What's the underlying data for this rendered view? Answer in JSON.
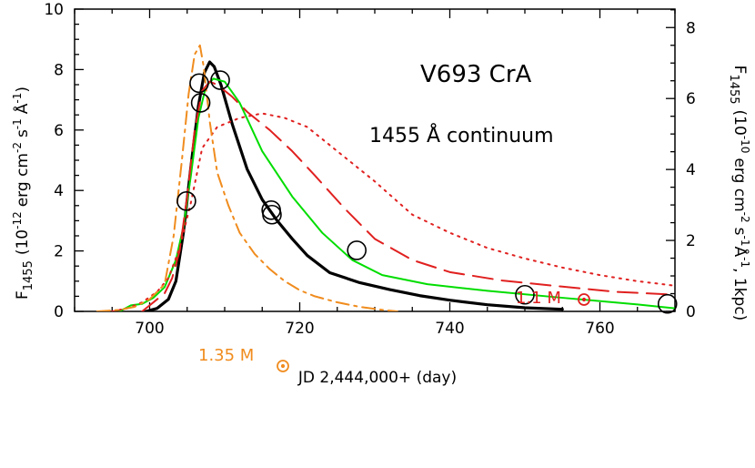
{
  "chart_data": {
    "type": "line",
    "title": "V693 CrA",
    "subtitle": "1455 Å continuum",
    "xlabel": "JD 2,444,000+ (day)",
    "ylabel_left": {
      "main": "F",
      "sub": "1455",
      "rest": "(10",
      "exp": "-12",
      "units": "erg cm",
      "e2": "-2",
      "s": "s",
      "e1": "-1",
      "ang": "Å",
      "e3": "-1",
      "close": ")"
    },
    "ylabel_right": {
      "main": "F",
      "sub": "1455",
      "rest": "(10",
      "exp": "-10",
      "units": "erg cm",
      "e2": "-2",
      "s": "s",
      "e1": "-1",
      "ang": "Å",
      "e3": "-1",
      "tail": ", 1kpc)"
    },
    "xlim": [
      690,
      770
    ],
    "ylim_left": [
      0,
      10
    ],
    "ylim_right": [
      0,
      8.52
    ],
    "x_ticks": [
      700,
      720,
      740,
      760
    ],
    "y_ticks_left": [
      0,
      2,
      4,
      6,
      8,
      10
    ],
    "y_ticks_right": [
      0,
      2,
      4,
      6,
      8
    ],
    "annotations": {
      "m1": {
        "text": "1.1 M",
        "color": "#e0201f"
      },
      "m2": {
        "text": "1.35 M",
        "color": "#f08c1e"
      }
    },
    "observations": {
      "x": [
        704.9,
        706.6,
        706.8,
        709.4,
        716.2,
        716.3,
        727.6,
        750.0,
        769.0
      ],
      "y": [
        3.65,
        7.55,
        6.9,
        7.65,
        3.35,
        3.2,
        2.02,
        0.55,
        0.25
      ]
    },
    "series": [
      {
        "color": "#000000",
        "style": "solid",
        "width": 3.2,
        "x": [
          699.5,
          701,
          702.5,
          703.5,
          704.5,
          705.5,
          706.5,
          707.3,
          708,
          708.6,
          709.5,
          711,
          713,
          715,
          717,
          719,
          721,
          724,
          728,
          732,
          736,
          740,
          745,
          750,
          755
        ],
        "y": [
          0,
          0.1,
          0.4,
          1.0,
          2.6,
          4.8,
          6.8,
          7.9,
          8.25,
          8.1,
          7.5,
          6.2,
          4.7,
          3.7,
          3.0,
          2.4,
          1.85,
          1.28,
          0.95,
          0.72,
          0.52,
          0.37,
          0.22,
          0.12,
          0.07
        ]
      },
      {
        "color": "#00dd00",
        "style": "solid",
        "width": 2,
        "x": [
          696,
          697.5,
          699,
          700.5,
          702,
          703.5,
          704.5,
          705.5,
          706.5,
          707.5,
          708.5,
          710,
          712,
          715,
          719,
          723,
          727,
          731,
          737,
          745,
          755,
          765,
          770
        ],
        "y": [
          0,
          0.2,
          0.25,
          0.45,
          0.8,
          1.7,
          2.8,
          4.5,
          6.4,
          7.45,
          7.7,
          7.6,
          6.9,
          5.3,
          3.8,
          2.6,
          1.7,
          1.2,
          0.9,
          0.68,
          0.45,
          0.23,
          0.1
        ]
      },
      {
        "color": "#e0201f",
        "style": "dashed",
        "width": 2,
        "x": [
          699,
          700.5,
          702,
          703,
          704,
          705,
          706,
          707,
          708,
          709,
          711,
          713,
          716,
          719,
          722,
          726,
          730,
          735,
          740,
          747,
          755,
          762,
          770
        ],
        "y": [
          0,
          0.3,
          0.6,
          1.1,
          2.0,
          3.8,
          6.0,
          7.3,
          7.6,
          7.5,
          7.1,
          6.6,
          6.0,
          5.3,
          4.5,
          3.4,
          2.4,
          1.7,
          1.3,
          1.02,
          0.82,
          0.65,
          0.55
        ]
      },
      {
        "color": "#e0201f",
        "style": "dotted",
        "width": 2,
        "x": [
          695,
          697,
          699,
          701,
          702.5,
          704,
          705.5,
          707,
          709,
          712,
          715,
          718,
          721,
          725,
          730,
          735,
          740,
          745,
          750,
          755,
          760,
          765,
          770
        ],
        "y": [
          0,
          0.1,
          0.3,
          0.65,
          1.1,
          2.1,
          3.6,
          5.4,
          6.1,
          6.4,
          6.55,
          6.4,
          6.1,
          5.3,
          4.3,
          3.2,
          2.6,
          2.1,
          1.75,
          1.45,
          1.2,
          1.0,
          0.85
        ]
      },
      {
        "color": "#f08c1e",
        "style": "dashdot",
        "width": 2,
        "x": [
          693,
          696,
          698,
          700,
          702,
          703.2,
          704.3,
          705.2,
          706,
          706.7,
          707.2,
          708,
          709,
          710.5,
          712,
          714,
          716,
          718,
          720,
          722,
          725,
          728,
          731,
          733
        ],
        "y": [
          0,
          0.05,
          0.15,
          0.4,
          0.9,
          2.5,
          5.0,
          7.2,
          8.5,
          8.8,
          8.1,
          6.3,
          4.6,
          3.5,
          2.6,
          1.9,
          1.4,
          1.0,
          0.7,
          0.5,
          0.3,
          0.15,
          0.05,
          0
        ]
      }
    ]
  }
}
